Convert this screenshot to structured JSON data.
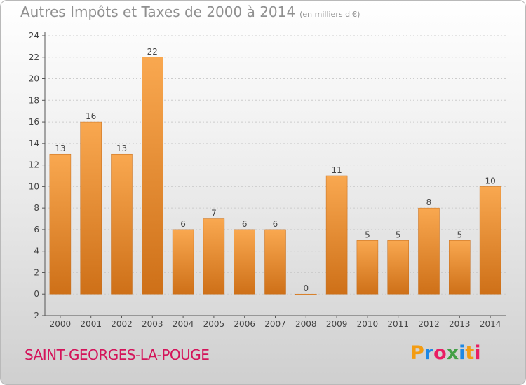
{
  "header": {
    "title": "Autres Impôts et Taxes de 2000 à 2014",
    "unit": "(en milliers d'€)"
  },
  "footer": {
    "commune": "SAINT-GEORGES-LA-POUGE",
    "logo_text": "Proxiti",
    "logo_colors": [
      "#f39c12",
      "#1e88e5",
      "#e91e63",
      "#43a047",
      "#1e88e5",
      "#f39c12",
      "#e91e63"
    ]
  },
  "colors": {
    "bar_top": "#f9a850",
    "bar_bottom": "#ce7018",
    "axis": "#555555",
    "grid": "#cccccc",
    "text": "#444444"
  },
  "chart_data": {
    "type": "bar",
    "categories": [
      "2000",
      "2001",
      "2002",
      "2003",
      "2004",
      "2005",
      "2006",
      "2007",
      "2008",
      "2009",
      "2010",
      "2011",
      "2012",
      "2013",
      "2014"
    ],
    "values": [
      13,
      16,
      13,
      22,
      6,
      7,
      6,
      6,
      0,
      11,
      5,
      5,
      8,
      5,
      10
    ],
    "title": "Autres Impôts et Taxes de 2000 à 2014",
    "ylim": [
      -2,
      24
    ],
    "yticks": [
      -2,
      0,
      2,
      4,
      6,
      8,
      10,
      12,
      14,
      16,
      18,
      20,
      22,
      24
    ],
    "grid": true
  }
}
